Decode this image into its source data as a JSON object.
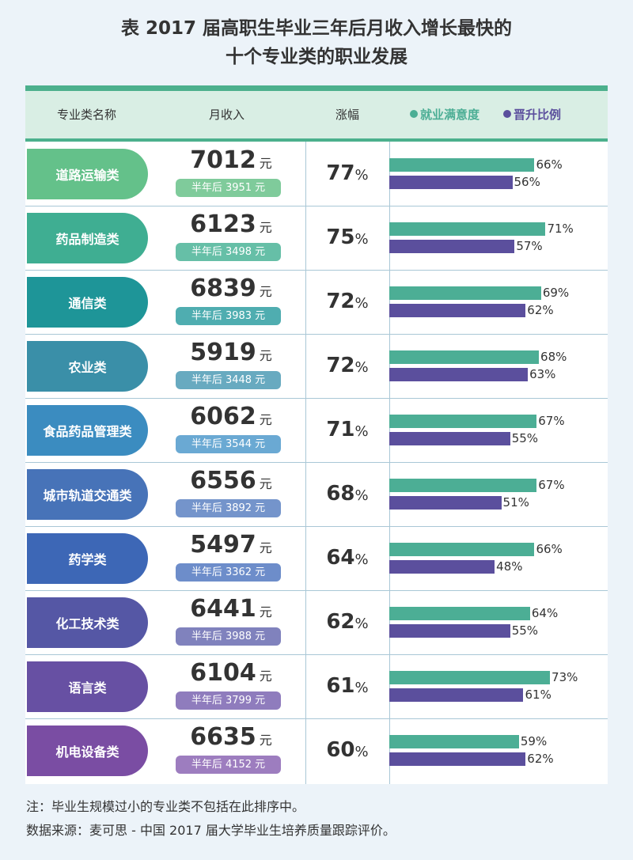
{
  "title": {
    "line1": "表  2017 届高职生毕业三年后月收入增长最快的",
    "line2": "十个专业类的职业发展"
  },
  "header": {
    "col_major": "专业类名称",
    "col_income": "月收入",
    "col_growth": "涨幅",
    "legend_satisfaction": "就业满意度",
    "legend_promotion": "晋升比例"
  },
  "colors": {
    "satisfaction": "#4cae95",
    "promotion": "#5b4f9d",
    "accent": "#4cb08d",
    "header_bg": "#d9eee4",
    "page_bg": "#ecf3f9"
  },
  "unit_yuan": "元",
  "pct_sign": "%",
  "half_year_prefix": "半年后",
  "chart_data": {
    "type": "table",
    "columns": [
      "专业类名称",
      "月收入",
      "半年后",
      "涨幅",
      "就业满意度",
      "晋升比例"
    ],
    "rows": [
      {
        "major": "道路运输类",
        "income": "7012",
        "half_year": "3951 元",
        "growth": "77",
        "satisfaction": 66,
        "promotion": 56,
        "pill_color": "#64c18a",
        "half_color": "#7fcb9b"
      },
      {
        "major": "药品制造类",
        "income": "6123",
        "half_year": "3498 元",
        "growth": "75",
        "satisfaction": 71,
        "promotion": 57,
        "pill_color": "#3fae92",
        "half_color": "#66bfa7"
      },
      {
        "major": "通信类",
        "income": "6839",
        "half_year": "3983 元",
        "growth": "72",
        "satisfaction": 69,
        "promotion": 62,
        "pill_color": "#1e9598",
        "half_color": "#4fadb0"
      },
      {
        "major": "农业类",
        "income": "5919",
        "half_year": "3448 元",
        "growth": "72",
        "satisfaction": 68,
        "promotion": 63,
        "pill_color": "#3a8fa8",
        "half_color": "#68aac0"
      },
      {
        "major": "食品药品管理类",
        "income": "6062",
        "half_year": "3544 元",
        "growth": "71",
        "satisfaction": 67,
        "promotion": 55,
        "pill_color": "#3b8cc0",
        "half_color": "#6aa9d3"
      },
      {
        "major": "城市轨道交通类",
        "income": "6556",
        "half_year": "3892 元",
        "growth": "68",
        "satisfaction": 67,
        "promotion": 51,
        "pill_color": "#4773b8",
        "half_color": "#7494cb"
      },
      {
        "major": "药学类",
        "income": "5497",
        "half_year": "3362 元",
        "growth": "64",
        "satisfaction": 66,
        "promotion": 48,
        "pill_color": "#3d67b6",
        "half_color": "#6d8dca"
      },
      {
        "major": "化工技术类",
        "income": "6441",
        "half_year": "3988 元",
        "growth": "62",
        "satisfaction": 64,
        "promotion": 55,
        "pill_color": "#5557a5",
        "half_color": "#8082bd"
      },
      {
        "major": "语言类",
        "income": "6104",
        "half_year": "3799 元",
        "growth": "61",
        "satisfaction": 73,
        "promotion": 61,
        "pill_color": "#6750a3",
        "half_color": "#8f7cbd"
      },
      {
        "major": "机电设备类",
        "income": "6635",
        "half_year": "4152 元",
        "growth": "60",
        "satisfaction": 59,
        "promotion": 62,
        "pill_color": "#7a4da3",
        "half_color": "#9d7dbf"
      }
    ]
  },
  "notes": {
    "note1": "注：毕业生规模过小的专业类不包括在此排序中。",
    "note2": "数据来源：麦可思 - 中国 2017 届大学毕业生培养质量跟踪评价。"
  }
}
